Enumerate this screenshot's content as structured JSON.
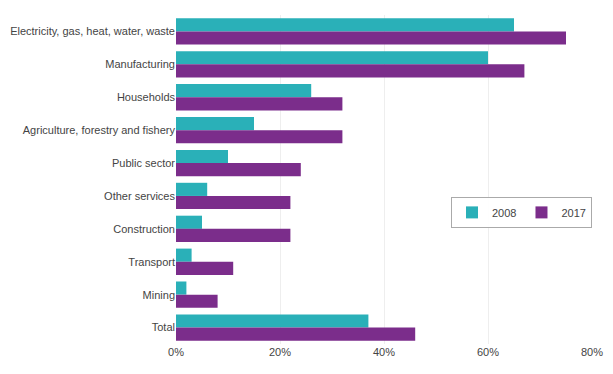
{
  "chart_data": {
    "type": "bar",
    "orientation": "horizontal",
    "categories": [
      "Electricity, gas, heat, water, waste",
      "Manufacturing",
      "Households",
      "Agriculture, forestry and fishery",
      "Public sector",
      "Other services",
      "Construction",
      "Transport",
      "Mining",
      "Total"
    ],
    "series": [
      {
        "name": "2008",
        "color": "#2ab0b8",
        "values": [
          65,
          60,
          26,
          15,
          10,
          6,
          5,
          3,
          2,
          37
        ]
      },
      {
        "name": "2017",
        "color": "#7b2d8b",
        "values": [
          75,
          67,
          32,
          32,
          24,
          22,
          22,
          11,
          8,
          46
        ]
      }
    ],
    "xlim": [
      0,
      80
    ],
    "xticks": [
      {
        "value": 0,
        "label": "0%"
      },
      {
        "value": 20,
        "label": "20%"
      },
      {
        "value": 40,
        "label": "40%"
      },
      {
        "value": 60,
        "label": "60%"
      },
      {
        "value": 80,
        "label": "80%"
      }
    ],
    "grid": true,
    "legend": "right"
  }
}
